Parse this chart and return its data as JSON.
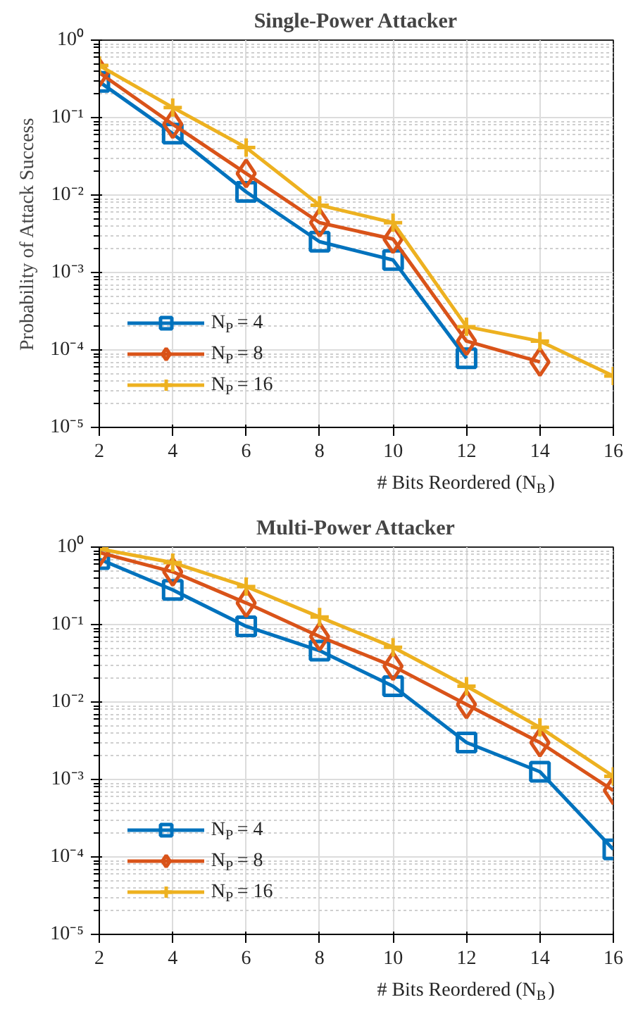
{
  "chart_data": [
    {
      "type": "line",
      "title": "Single-Power Attacker",
      "xlabel": "# Bits Reordered (N$_{B}$)",
      "ylabel": "Probability of Attack Success",
      "x": [
        2,
        4,
        6,
        8,
        10,
        12,
        14,
        16
      ],
      "xlim": [
        2,
        16
      ],
      "xticks": [
        2,
        4,
        6,
        8,
        10,
        12,
        14,
        16
      ],
      "ylim": [
        1e-05,
        1
      ],
      "yticks": [
        {
          "value": 1e-05,
          "label": "10⁻⁵"
        },
        {
          "value": 0.0001,
          "label": "10⁻⁴"
        },
        {
          "value": 0.001,
          "label": "10⁻³"
        },
        {
          "value": 0.01,
          "label": "10⁻²"
        },
        {
          "value": 0.1,
          "label": "10⁻¹"
        },
        {
          "value": 1,
          "label": "10⁰"
        }
      ],
      "log": "y",
      "grid": true,
      "legend": "bottom left",
      "series": [
        {
          "name": "N$_{P}$ = 4",
          "color": "#0072bd",
          "marker": "square",
          "values": [
            0.29,
            0.062,
            0.011,
            0.0025,
            0.00145,
            7.8e-05,
            null,
            null
          ]
        },
        {
          "name": "N$_{P}$ = 8",
          "color": "#d95319",
          "marker": "diamond",
          "values": [
            0.38,
            0.082,
            0.019,
            0.0044,
            0.0027,
            0.00013,
            7e-05,
            null
          ]
        },
        {
          "name": "N$_{P}$ = 16",
          "color": "#edb120",
          "marker": "cross",
          "values": [
            0.47,
            0.135,
            0.041,
            0.0074,
            0.0044,
            0.0002,
            0.00013,
            4.6e-05
          ]
        }
      ]
    },
    {
      "type": "line",
      "title": "Multi-Power Attacker",
      "xlabel": "# Bits Reordered (N$_{B}$)",
      "x": [
        2,
        4,
        6,
        8,
        10,
        12,
        14,
        16
      ],
      "xlim": [
        2,
        16
      ],
      "xticks": [
        2,
        4,
        6,
        8,
        10,
        12,
        14,
        16
      ],
      "ylim": [
        1e-05,
        1
      ],
      "yticks": [
        {
          "value": 1e-05,
          "label": "10⁻⁵"
        },
        {
          "value": 0.0001,
          "label": "10⁻⁴"
        },
        {
          "value": 0.001,
          "label": "10⁻³"
        },
        {
          "value": 0.01,
          "label": "10⁻²"
        },
        {
          "value": 0.1,
          "label": "10⁻¹"
        },
        {
          "value": 1,
          "label": "10⁰"
        }
      ],
      "log": "y",
      "grid": true,
      "legend": "bottom left",
      "series": [
        {
          "name": "N$_{P}$ = 4",
          "color": "#0072bd",
          "marker": "square",
          "values": [
            0.7,
            0.28,
            0.095,
            0.046,
            0.016,
            0.003,
            0.00126,
            0.000125
          ]
        },
        {
          "name": "N$_{P}$ = 8",
          "color": "#d95319",
          "marker": "diamond",
          "values": [
            0.85,
            0.48,
            0.19,
            0.07,
            0.029,
            0.0093,
            0.003,
            0.00072
          ]
        },
        {
          "name": "N$_{P}$ = 16",
          "color": "#edb120",
          "marker": "cross",
          "values": [
            0.95,
            0.63,
            0.31,
            0.125,
            0.051,
            0.016,
            0.0047,
            0.0011
          ]
        }
      ]
    }
  ]
}
